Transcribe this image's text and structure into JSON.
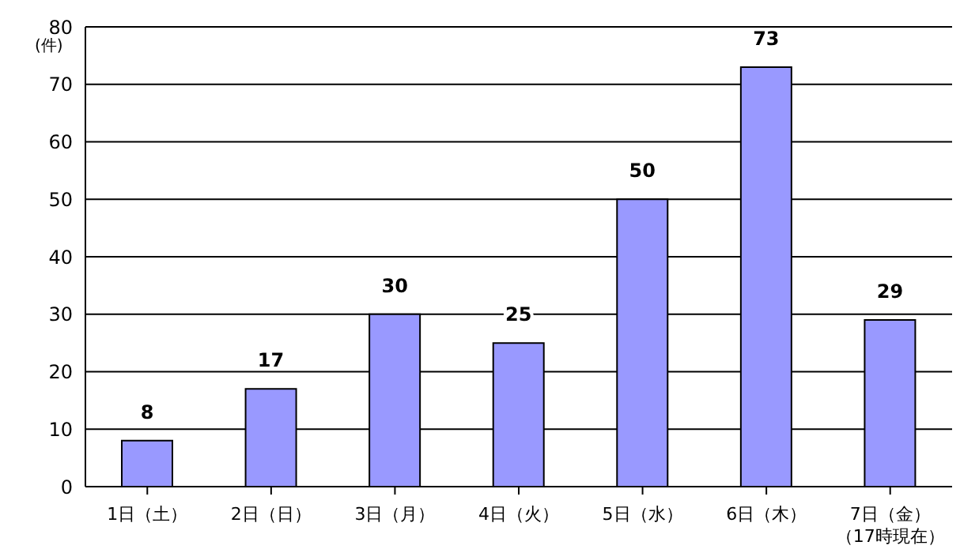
{
  "chart_data": {
    "type": "bar",
    "ylabel": "(件)",
    "categories": [
      "1日（土）",
      "2日（日）",
      "3日（月）",
      "4日（火）",
      "5日（水）",
      "6日（木）",
      "7日（金）（17時現在）"
    ],
    "values": [
      8,
      17,
      30,
      25,
      50,
      73,
      29
    ],
    "color": "#9999ff",
    "ylim": [
      0,
      80
    ],
    "yticks": [
      0,
      10,
      20,
      30,
      40,
      50,
      60,
      70,
      80
    ],
    "grid": "y",
    "data_labels": true
  }
}
